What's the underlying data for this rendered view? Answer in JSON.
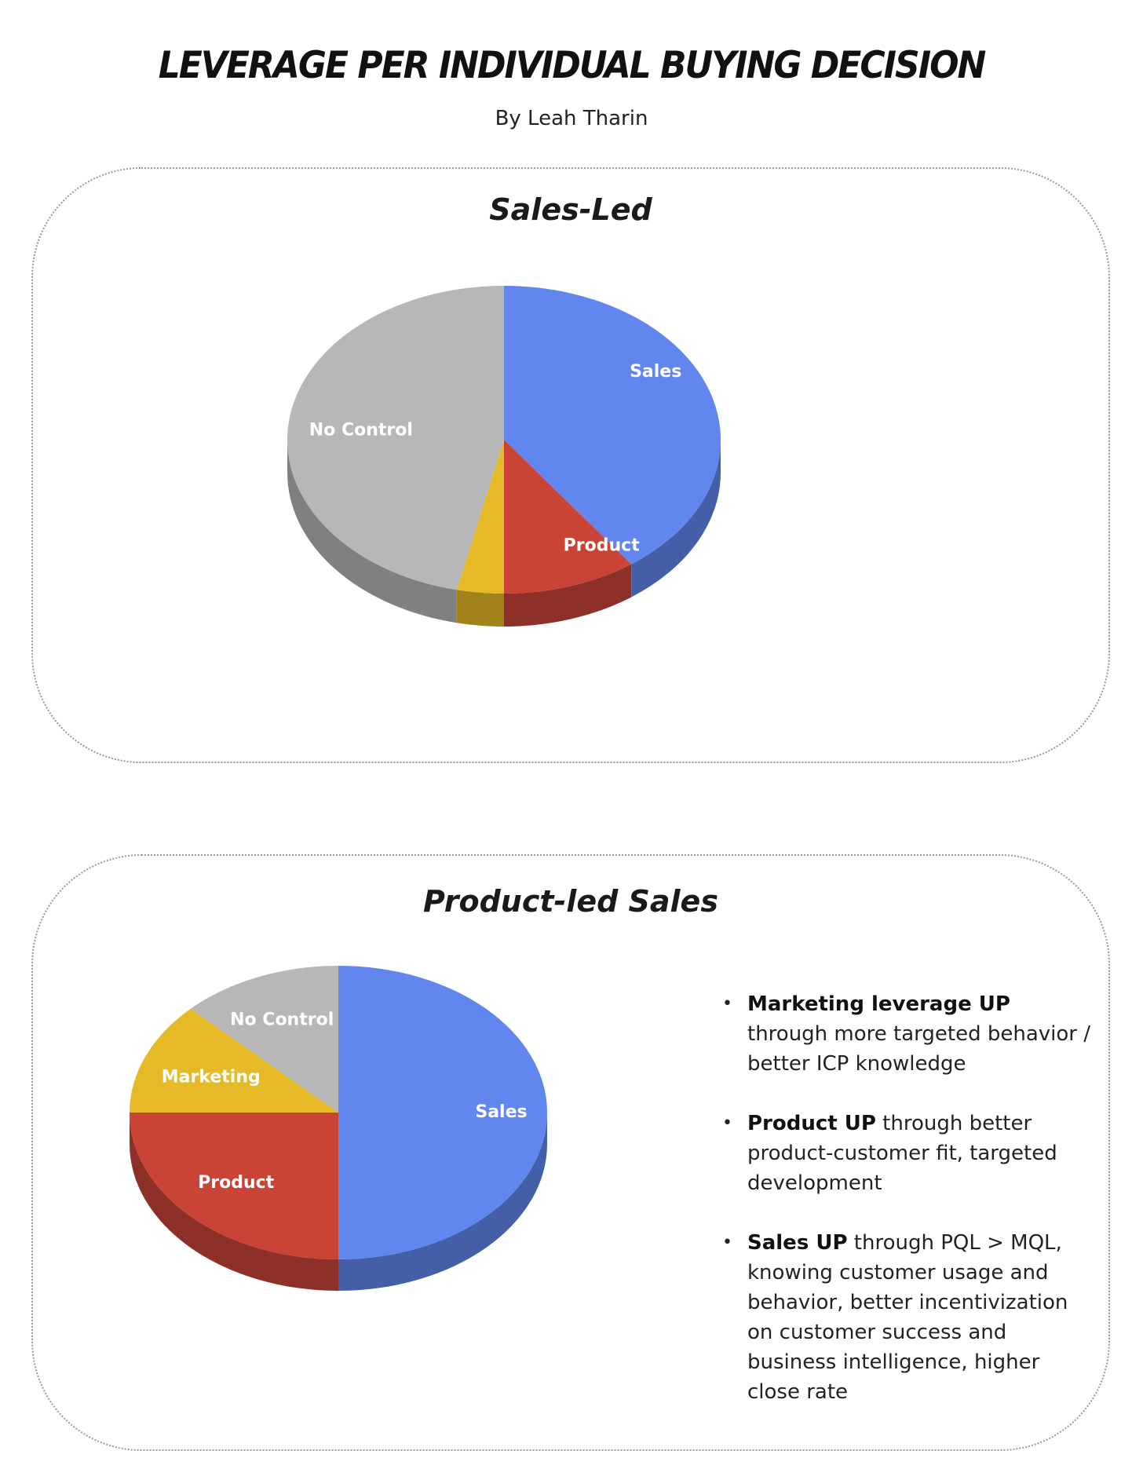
{
  "header": {
    "title": "LEVERAGE PER INDIVIDUAL BUYING DECISION",
    "byline": "By Leah Tharin"
  },
  "colors": {
    "Sales": "#6187ef",
    "Product": "#c94437",
    "Marketing": "#e6ba26",
    "No Control": "#b7b7b7"
  },
  "chart_data": [
    {
      "type": "pie",
      "title": "Sales-Led",
      "slices": [
        {
          "label": "Sales",
          "value": 40.0,
          "show_label": true
        },
        {
          "label": "Product",
          "value": 10.0,
          "show_label": true
        },
        {
          "label": "Marketing",
          "value": 3.5,
          "show_label": false
        },
        {
          "label": "No Control",
          "value": 46.5,
          "show_label": true
        }
      ]
    },
    {
      "type": "pie",
      "title": "Product-led Sales",
      "slices": [
        {
          "label": "Sales",
          "value": 50.0,
          "show_label": true
        },
        {
          "label": "Product",
          "value": 25.0,
          "show_label": true
        },
        {
          "label": "Marketing",
          "value": 12.5,
          "show_label": true
        },
        {
          "label": "No Control",
          "value": 12.5,
          "show_label": true
        }
      ]
    }
  ],
  "notes": [
    {
      "bold": "Marketing leverage UP",
      "text": " through more targeted behavior / better ICP knowledge"
    },
    {
      "bold": "Product UP",
      "text": " through better product-customer fit, targeted development"
    },
    {
      "bold": "Sales UP",
      "text": " through PQL > MQL, knowing customer usage and behavior, better incentivization on customer success and business intelligence, higher close rate"
    }
  ],
  "bullet_glyph": "•"
}
